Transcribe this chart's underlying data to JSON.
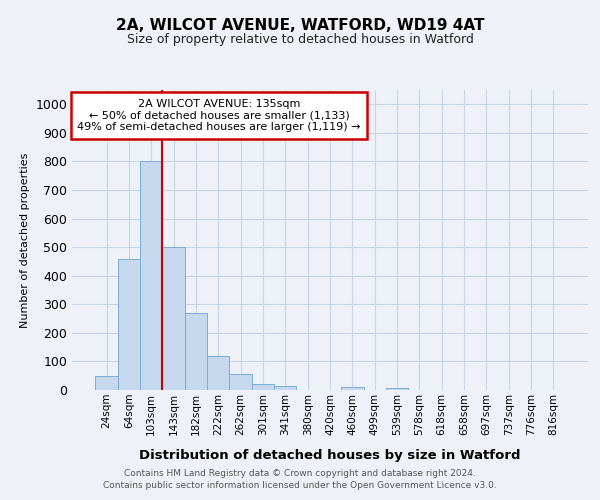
{
  "title_line1": "2A, WILCOT AVENUE, WATFORD, WD19 4AT",
  "title_line2": "Size of property relative to detached houses in Watford",
  "xlabel": "Distribution of detached houses by size in Watford",
  "ylabel": "Number of detached properties",
  "categories": [
    "24sqm",
    "64sqm",
    "103sqm",
    "143sqm",
    "182sqm",
    "222sqm",
    "262sqm",
    "301sqm",
    "341sqm",
    "380sqm",
    "420sqm",
    "460sqm",
    "499sqm",
    "539sqm",
    "578sqm",
    "618sqm",
    "658sqm",
    "697sqm",
    "737sqm",
    "776sqm",
    "816sqm"
  ],
  "values": [
    50,
    460,
    800,
    500,
    270,
    120,
    55,
    20,
    15,
    0,
    0,
    10,
    0,
    8,
    0,
    0,
    0,
    0,
    0,
    0,
    0
  ],
  "bar_color": "#c5d8ee",
  "bar_edge_color": "#7badd4",
  "grid_color": "#c8d4e8",
  "marker_index": 3,
  "marker_color": "#cc0000",
  "annotation_line1": "2A WILCOT AVENUE: 135sqm",
  "annotation_line2": "← 50% of detached houses are smaller (1,133)",
  "annotation_line3": "49% of semi-detached houses are larger (1,119) →",
  "annotation_box_color": "#ffffff",
  "annotation_box_edge_color": "#cc0000",
  "ylim": [
    0,
    1050
  ],
  "yticks": [
    0,
    100,
    200,
    300,
    400,
    500,
    600,
    700,
    800,
    900,
    1000
  ],
  "footer_line1": "Contains HM Land Registry data © Crown copyright and database right 2024.",
  "footer_line2": "Contains public sector information licensed under the Open Government Licence v3.0.",
  "bg_color": "#eef2f8"
}
